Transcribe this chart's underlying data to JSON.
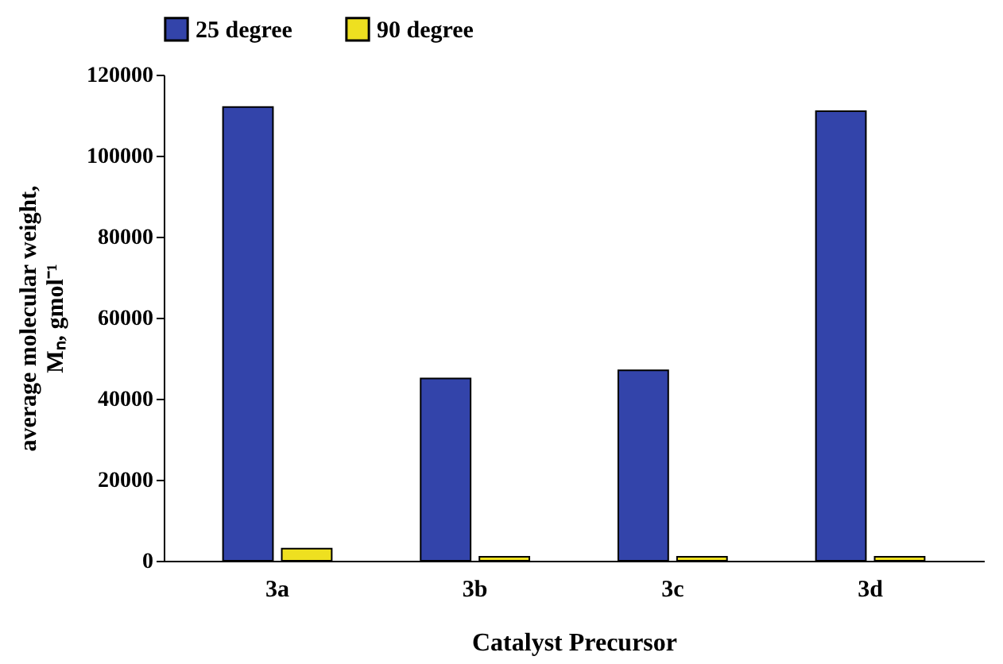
{
  "chart_data": {
    "type": "bar",
    "xlabel": "Catalyst Precursor",
    "ylabel": "average molecular weight, Mₙ, gmol⁻¹",
    "categories": [
      "3a",
      "3b",
      "3c",
      "3d"
    ],
    "series": [
      {
        "name": "25 degree",
        "color": "#3344aa",
        "values": [
          112000,
          45000,
          47000,
          111000
        ]
      },
      {
        "name": "90 degree",
        "color": "#eee020",
        "values": [
          3000,
          1000,
          1000,
          1000
        ]
      }
    ],
    "ylim": [
      0,
      120000
    ],
    "yticks": [
      0,
      20000,
      40000,
      60000,
      80000,
      100000,
      120000
    ],
    "grid": false,
    "legend": "top"
  }
}
